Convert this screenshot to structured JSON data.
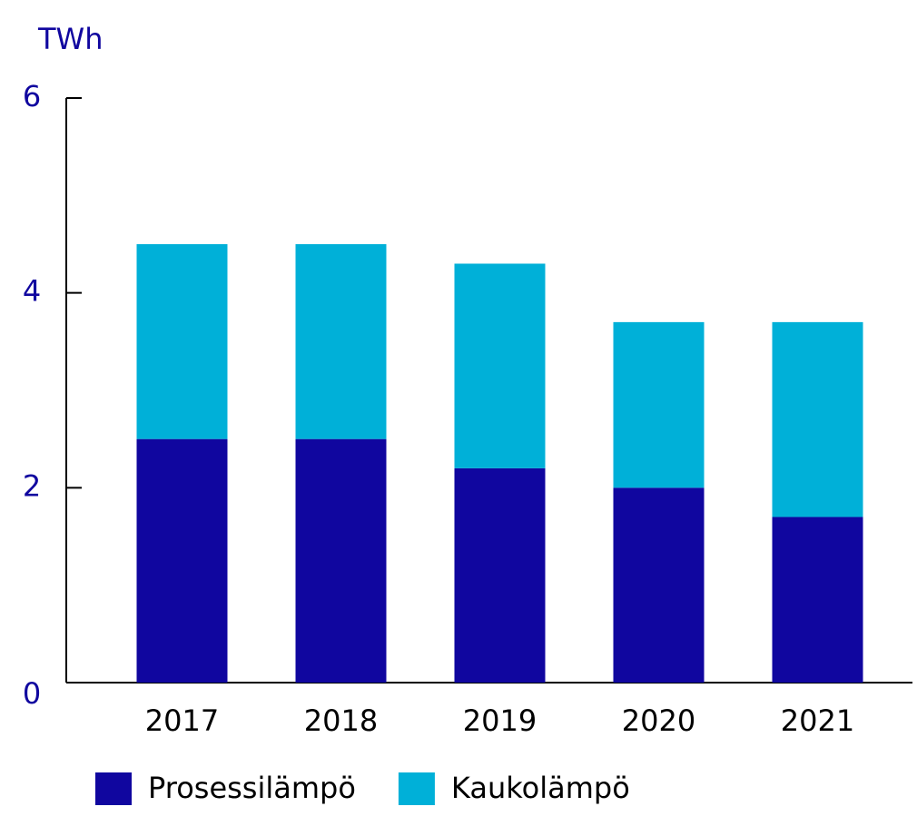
{
  "chart_data": {
    "type": "stacked_bar",
    "y_axis_label": "TWh",
    "categories": [
      "2017",
      "2018",
      "2019",
      "2020",
      "2021"
    ],
    "series": [
      {
        "name": "Prosessilämpö",
        "color": "#10069f",
        "values": [
          2.5,
          2.5,
          2.2,
          2.0,
          1.7
        ]
      },
      {
        "name": "Kaukolämpö",
        "color": "#00b0d8",
        "values": [
          2.0,
          2.0,
          2.1,
          1.7,
          2.0
        ]
      }
    ],
    "ylim": [
      0,
      6
    ],
    "yticks": [
      0,
      2,
      4,
      6
    ],
    "grid": false
  }
}
